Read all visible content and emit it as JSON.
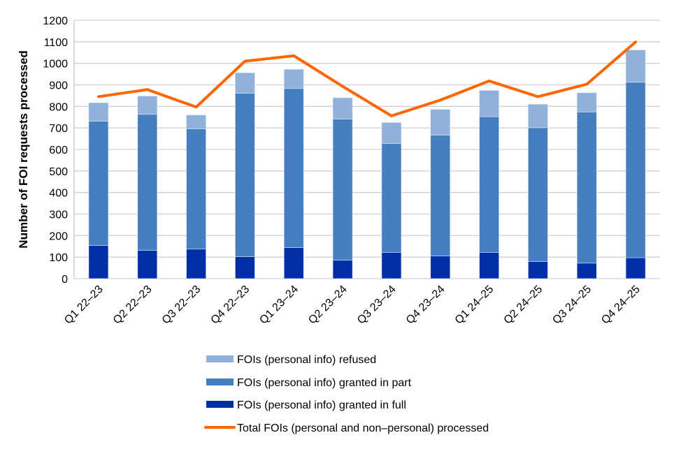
{
  "chart_data": {
    "type": "bar",
    "stacked": true,
    "title": "",
    "xlabel": "",
    "ylabel": "Number of FOI requests processed",
    "ylim": [
      0,
      1200
    ],
    "yticks": [
      0,
      100,
      200,
      300,
      400,
      500,
      600,
      700,
      800,
      900,
      1000,
      1100,
      1200
    ],
    "grid": true,
    "legend_position": "bottom",
    "categories": [
      "Q1 22–23",
      "Q2 22–23",
      "Q3 22–23",
      "Q4 22–23",
      "Q1 23–24",
      "Q2 23–24",
      "Q3 23–24",
      "Q4 23–24",
      "Q1 24–25",
      "Q2 24–25",
      "Q3 24–25",
      "Q4 24–25"
    ],
    "series": [
      {
        "name": "FOIs (personal info) granted in full",
        "kind": "bar",
        "color": "#002DA8",
        "values": [
          154,
          131,
          137,
          102,
          144,
          86,
          121,
          105,
          121,
          79,
          72,
          97
        ]
      },
      {
        "name": "FOIs (personal info) granted in part",
        "kind": "bar",
        "color": "#467FC0",
        "values": [
          577,
          632,
          559,
          759,
          739,
          655,
          506,
          561,
          631,
          622,
          702,
          815
        ]
      },
      {
        "name": "FOIs (personal info) refused",
        "kind": "bar",
        "color": "#8FB1DA",
        "values": [
          86,
          85,
          64,
          95,
          89,
          99,
          98,
          120,
          122,
          109,
          89,
          150
        ]
      },
      {
        "name": "Total FOIs (personal and non–personal) processed",
        "kind": "line",
        "color": "#FF6600",
        "values": [
          845,
          878,
          797,
          1010,
          1035,
          893,
          756,
          829,
          918,
          845,
          903,
          1099
        ]
      }
    ],
    "legend_order": [
      2,
      1,
      0,
      3
    ]
  }
}
